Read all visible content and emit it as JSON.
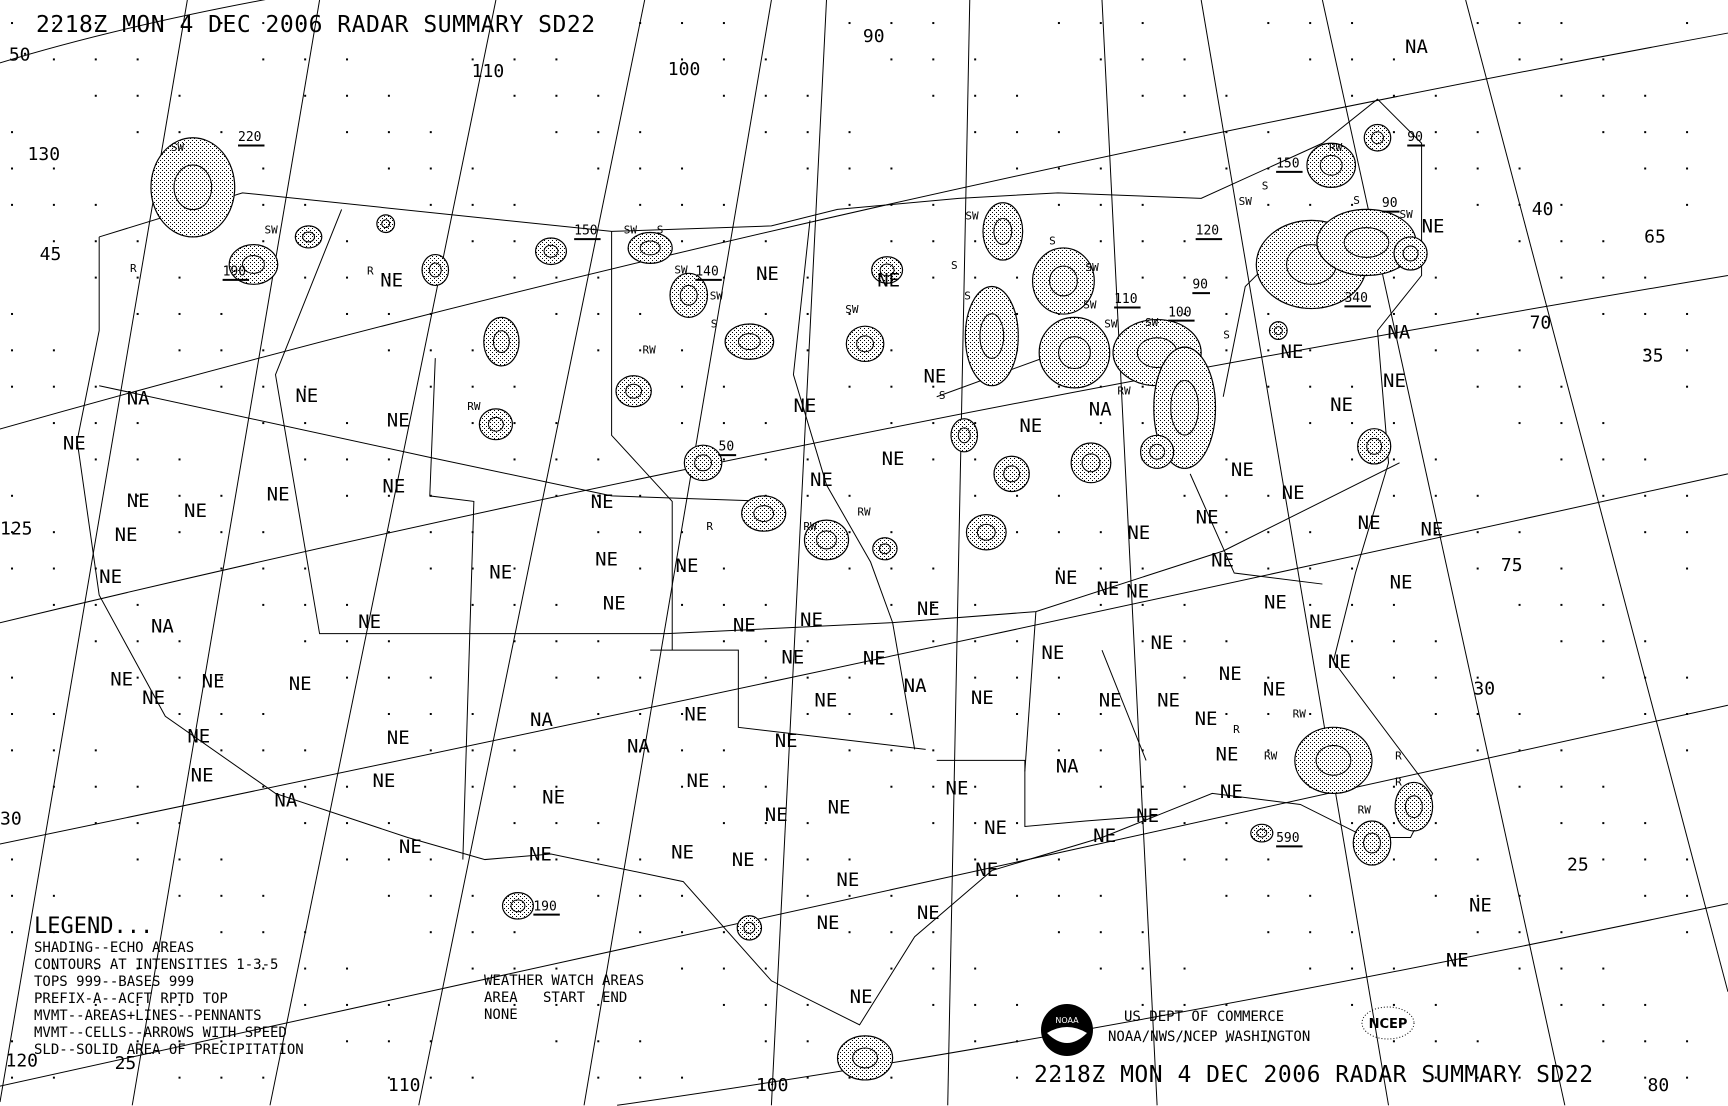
{
  "header": {
    "title_top": "2218Z MON  4 DEC 2006 RADAR SUMMARY SD22",
    "title_bottom": "2218Z MON  4 DEC 2006 RADAR SUMMARY SD22"
  },
  "legend": {
    "heading": "LEGEND...",
    "lines": [
      "SHADING--ECHO AREAS",
      "CONTOURS AT INTENSITIES 1-3-5",
      "TOPS 999--BASES 999",
      "PREFIX-A--ACFT RPTD TOP",
      "MVMT--AREAS+LINES--PENNANTS",
      "MVMT--CELLS--ARROWS WITH SPEED",
      "SLD--SOLID AREA OF PRECIPITATION"
    ]
  },
  "weather_watch": {
    "title": "WEATHER WATCH AREAS",
    "columns": "AREA   START  END",
    "value": "NONE"
  },
  "credits": {
    "line1": "US DEPT OF COMMERCE",
    "line2": "NOAA/NWS/NCEP WASHINGTON",
    "noaa_logo": "NOAA",
    "ncep_logo": "NCEP"
  },
  "map": {
    "projection": "polar stereographic",
    "echo_color": "#b0b0b0",
    "grid_labels": [
      "50",
      "130",
      "45",
      "125",
      "30",
      "120",
      "25",
      "110",
      "100",
      "90",
      "110",
      "100",
      "40",
      "65",
      "70",
      "35",
      "75",
      "30",
      "25",
      "80"
    ],
    "region_labels": [
      "NA",
      "NE",
      "NE",
      "NE",
      "NE",
      "NE",
      "NA",
      "NE",
      "NE",
      "NE",
      "NE",
      "NE",
      "NE",
      "NE",
      "NE",
      "NE",
      "NE",
      "NE",
      "NE",
      "NE",
      "NE",
      "NE",
      "NE",
      "NE",
      "NA",
      "NE",
      "NA",
      "NE",
      "NE",
      "NE",
      "NE",
      "NE",
      "NE",
      "NE",
      "NE",
      "NE",
      "NE",
      "NE",
      "NE",
      "NE",
      "NE",
      "NE",
      "NE",
      "NE",
      "NE",
      "NE",
      "NE",
      "NE",
      "NE",
      "NE",
      "NE",
      "NE",
      "NE",
      "NE",
      "NA",
      "NE",
      "NE",
      "NE",
      "NE",
      "NE",
      "NA",
      "NE",
      "NE",
      "NE",
      "NE",
      "NE",
      "NE",
      "NA",
      "NE",
      "NE",
      "NE",
      "NE",
      "NE",
      "NE",
      "NA",
      "NE",
      "NE",
      "NA",
      "NA",
      "NE",
      "NE",
      "NE",
      "NE",
      "NE",
      "NE",
      "NE",
      "NE",
      "NE",
      "NE",
      "NE",
      "NE",
      "NE",
      "NE",
      "NE",
      "NE",
      "NE"
    ],
    "tops": [
      "220",
      "190",
      "150",
      "140",
      "50",
      "150",
      "120",
      "90",
      "110",
      "100",
      "340",
      "90",
      "90",
      "590",
      "190"
    ],
    "movement_codes": [
      "SW",
      "SW",
      "R",
      "R",
      "SW",
      "S",
      "SW",
      "SW",
      "S",
      "RW",
      "RW",
      "R",
      "RW",
      "RW",
      "SW",
      "S",
      "SW",
      "S",
      "S",
      "SW",
      "SW",
      "SW",
      "SW",
      "RW",
      "S",
      "S",
      "SW",
      "S",
      "SW",
      "S",
      "RW",
      "R",
      "RW",
      "R",
      "R",
      "RW",
      "RW"
    ]
  }
}
